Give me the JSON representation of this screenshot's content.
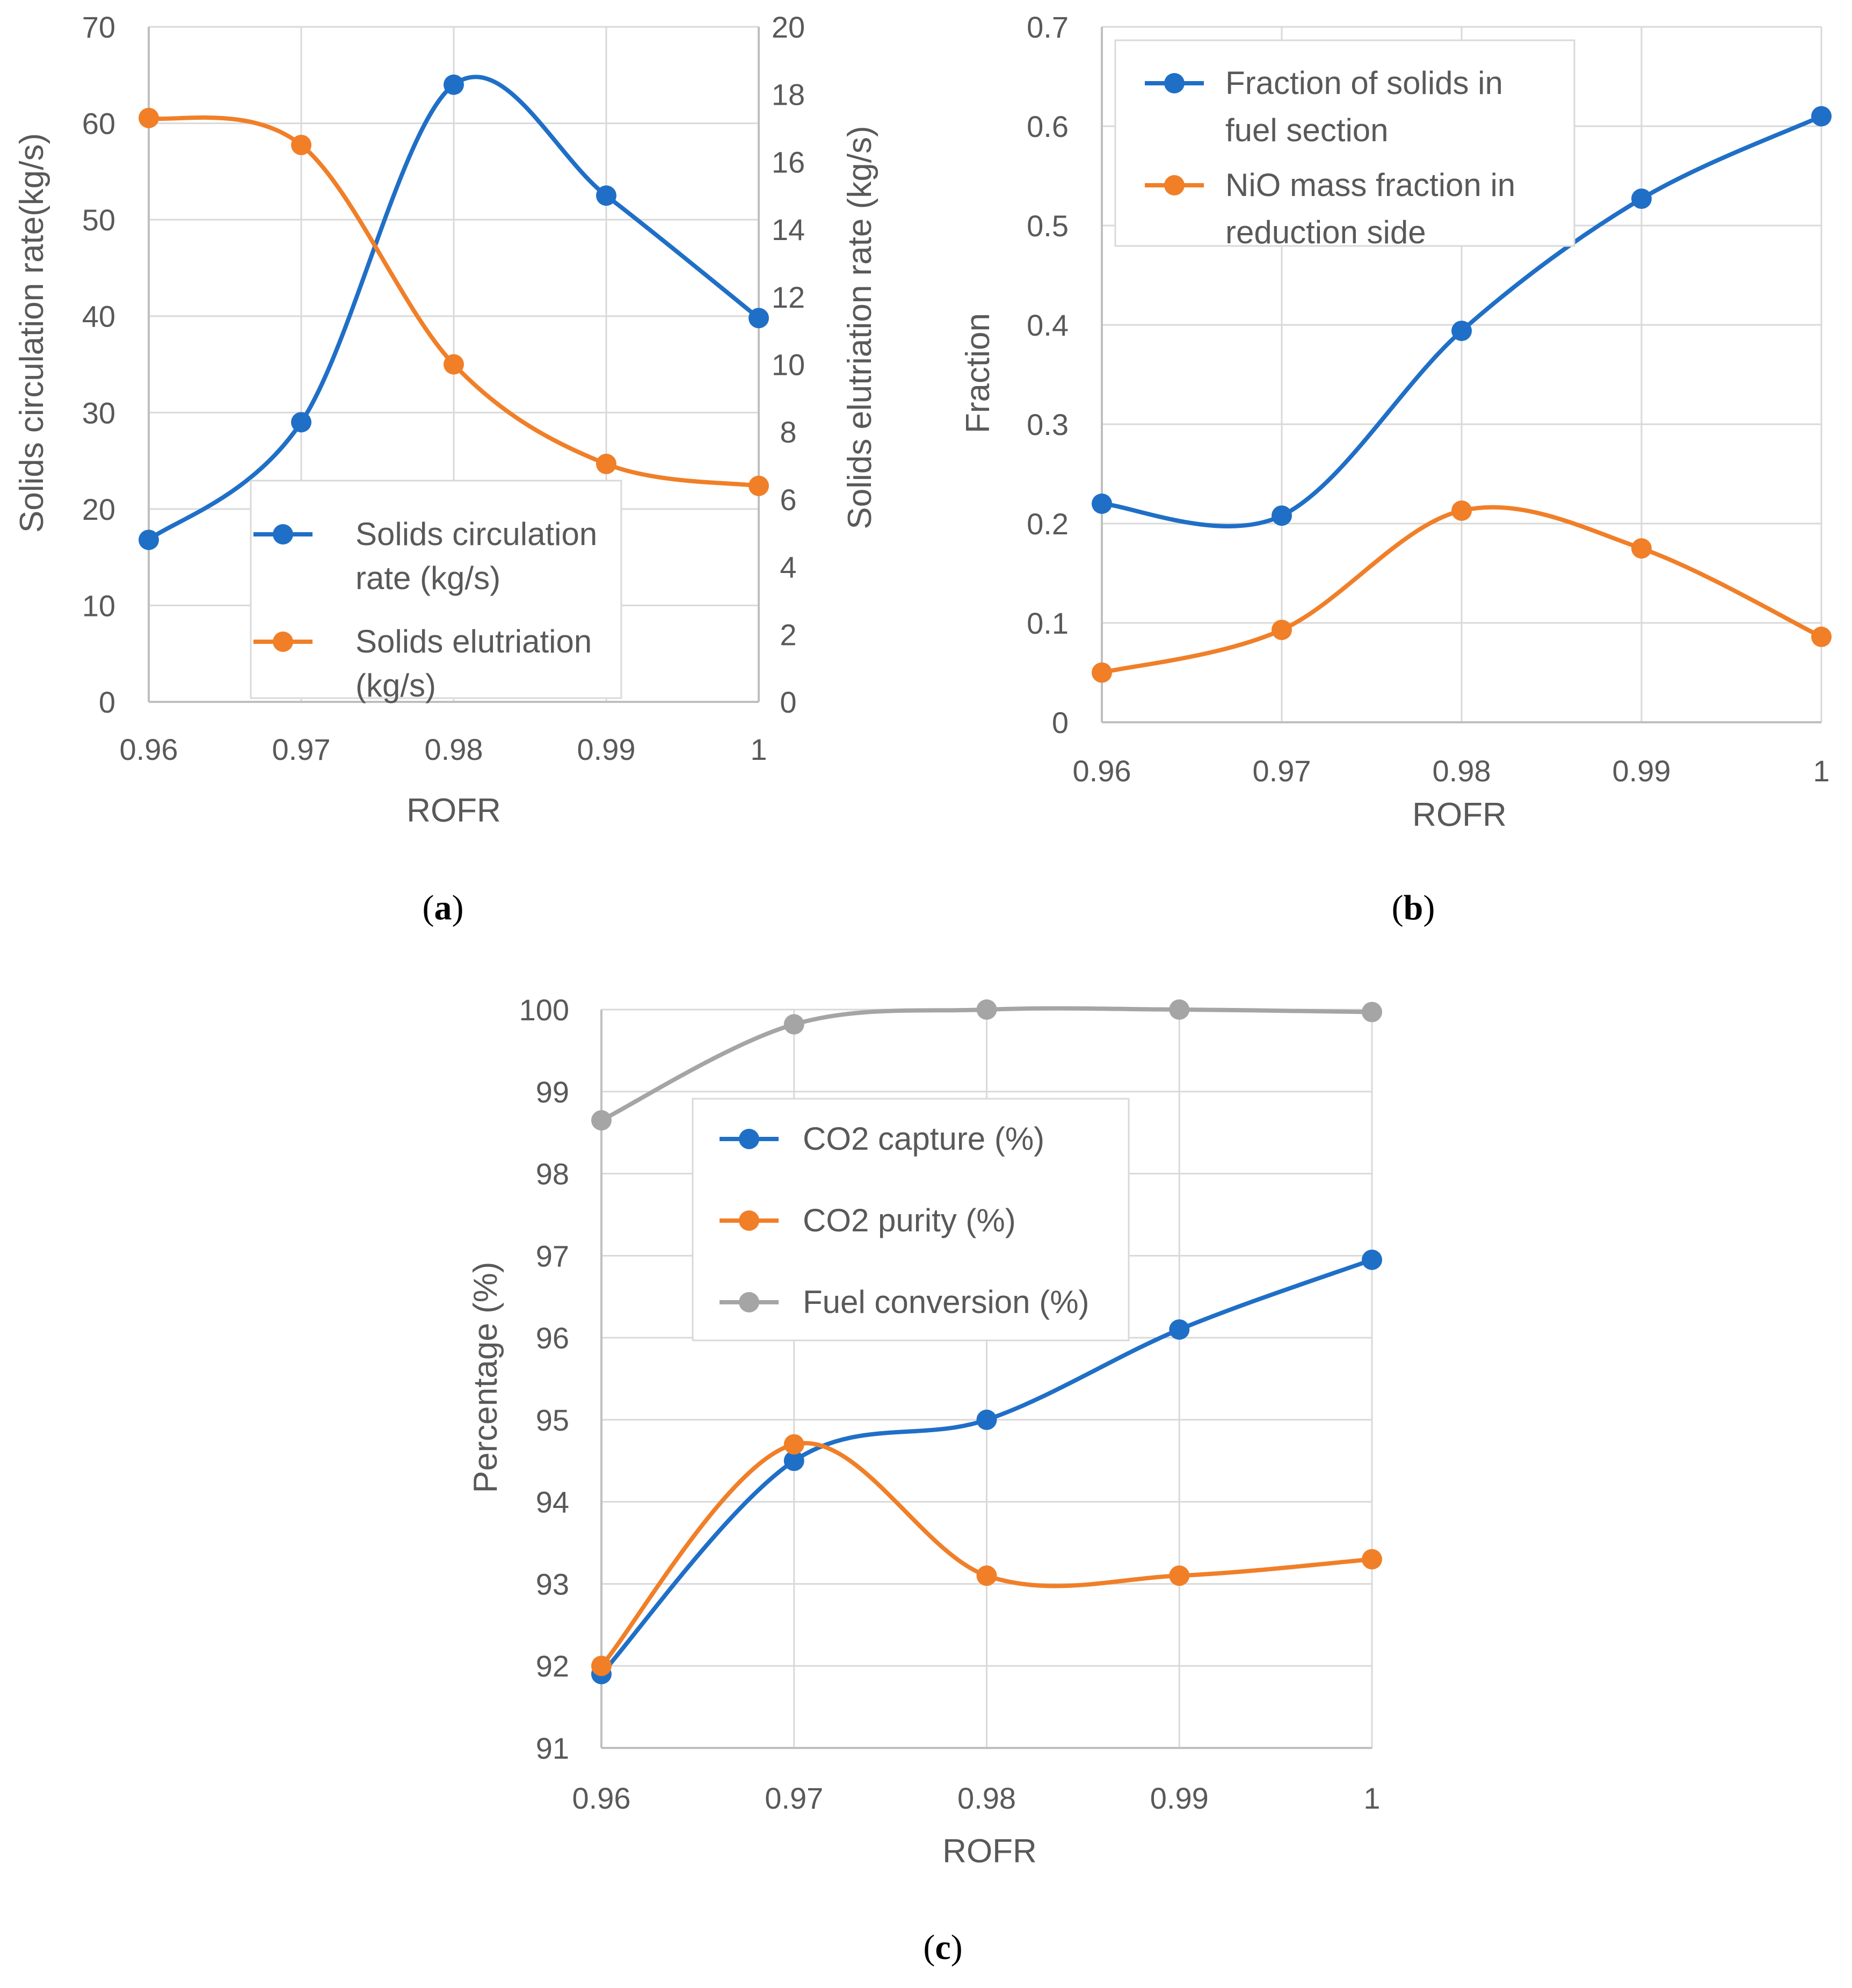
{
  "colors": {
    "blue": "#1f6fc7",
    "orange": "#f07f28",
    "gray": "#a5a5a5",
    "grid": "#d9d9d9",
    "axis": "#bfbfbf",
    "text": "#595959"
  },
  "chart_data": [
    {
      "id": "a",
      "type": "line",
      "caption": "a",
      "xlabel": "ROFR",
      "ylabel": "Solids circulation rate(kg/s)",
      "y2label": "Solids elutriation rate  (kg/s)",
      "x": [
        0.96,
        0.97,
        0.98,
        0.99,
        1
      ],
      "x_ticks": [
        "0.96",
        "0.97",
        "0.98",
        "0.99",
        "1"
      ],
      "ylim": [
        0,
        70
      ],
      "y_ticks": [
        0,
        10,
        20,
        30,
        40,
        50,
        60,
        70
      ],
      "y2lim": [
        0,
        20
      ],
      "y2_ticks": [
        0,
        2,
        4,
        6,
        8,
        10,
        12,
        14,
        16,
        18,
        20
      ],
      "grid": true,
      "legend_position": "bottom-center",
      "series": [
        {
          "name": "Solids circulation rate (kg/s)",
          "legend_lines": [
            "Solids circulation",
            "rate (kg/s)"
          ],
          "color": "blue",
          "axis": "left",
          "values": [
            16.8,
            29,
            64,
            52.5,
            39.8
          ]
        },
        {
          "name": "Solids elutriation (kg/s)",
          "legend_lines": [
            "Solids elutriation",
            "(kg/s)"
          ],
          "color": "orange",
          "axis": "right",
          "values": [
            17.3,
            16.5,
            10.0,
            7.05,
            6.4
          ]
        }
      ]
    },
    {
      "id": "b",
      "type": "line",
      "caption": "b",
      "xlabel": "ROFR",
      "ylabel": "Fraction",
      "x": [
        0.96,
        0.97,
        0.98,
        0.99,
        1
      ],
      "x_ticks": [
        "0.96",
        "0.97",
        "0.98",
        "0.99",
        "1"
      ],
      "ylim": [
        0,
        0.7
      ],
      "y_ticks": [
        "0",
        "0.1",
        "0.2",
        "0.3",
        "0.4",
        "0.5",
        "0.6",
        "0.7"
      ],
      "grid": true,
      "legend_position": "top-left",
      "series": [
        {
          "name": "Fraction of solids in fuel section",
          "legend_lines": [
            "Fraction of solids in",
            "fuel section"
          ],
          "color": "blue",
          "values": [
            0.22,
            0.208,
            0.394,
            0.527,
            0.61
          ]
        },
        {
          "name": "NiO mass fraction  in reduction side",
          "legend_lines": [
            "NiO mass fraction  in",
            "reduction side"
          ],
          "color": "orange",
          "values": [
            0.05,
            0.093,
            0.213,
            0.175,
            0.086
          ]
        }
      ]
    },
    {
      "id": "c",
      "type": "line",
      "caption": "c",
      "xlabel": "ROFR",
      "ylabel": "Percentage (%)",
      "x": [
        0.96,
        0.97,
        0.98,
        0.99,
        1
      ],
      "x_ticks": [
        "0.96",
        "0.97",
        "0.98",
        "0.99",
        "1"
      ],
      "ylim": [
        91,
        100
      ],
      "y_ticks": [
        91,
        92,
        93,
        94,
        95,
        96,
        97,
        98,
        99,
        100
      ],
      "grid": true,
      "legend_position": "upper-center",
      "series": [
        {
          "name": "CO2 capture (%)",
          "legend_lines": [
            "CO2 capture (%)"
          ],
          "color": "blue",
          "values": [
            91.9,
            94.5,
            95.0,
            96.1,
            96.95
          ]
        },
        {
          "name": "CO2 purity (%)",
          "legend_lines": [
            "CO2 purity (%)"
          ],
          "color": "orange",
          "values": [
            92.0,
            94.7,
            93.1,
            93.1,
            93.3
          ]
        },
        {
          "name": "Fuel conversion (%)",
          "legend_lines": [
            "Fuel conversion (%)"
          ],
          "color": "gray",
          "values": [
            98.65,
            99.82,
            100,
            100,
            99.97
          ]
        }
      ]
    }
  ]
}
